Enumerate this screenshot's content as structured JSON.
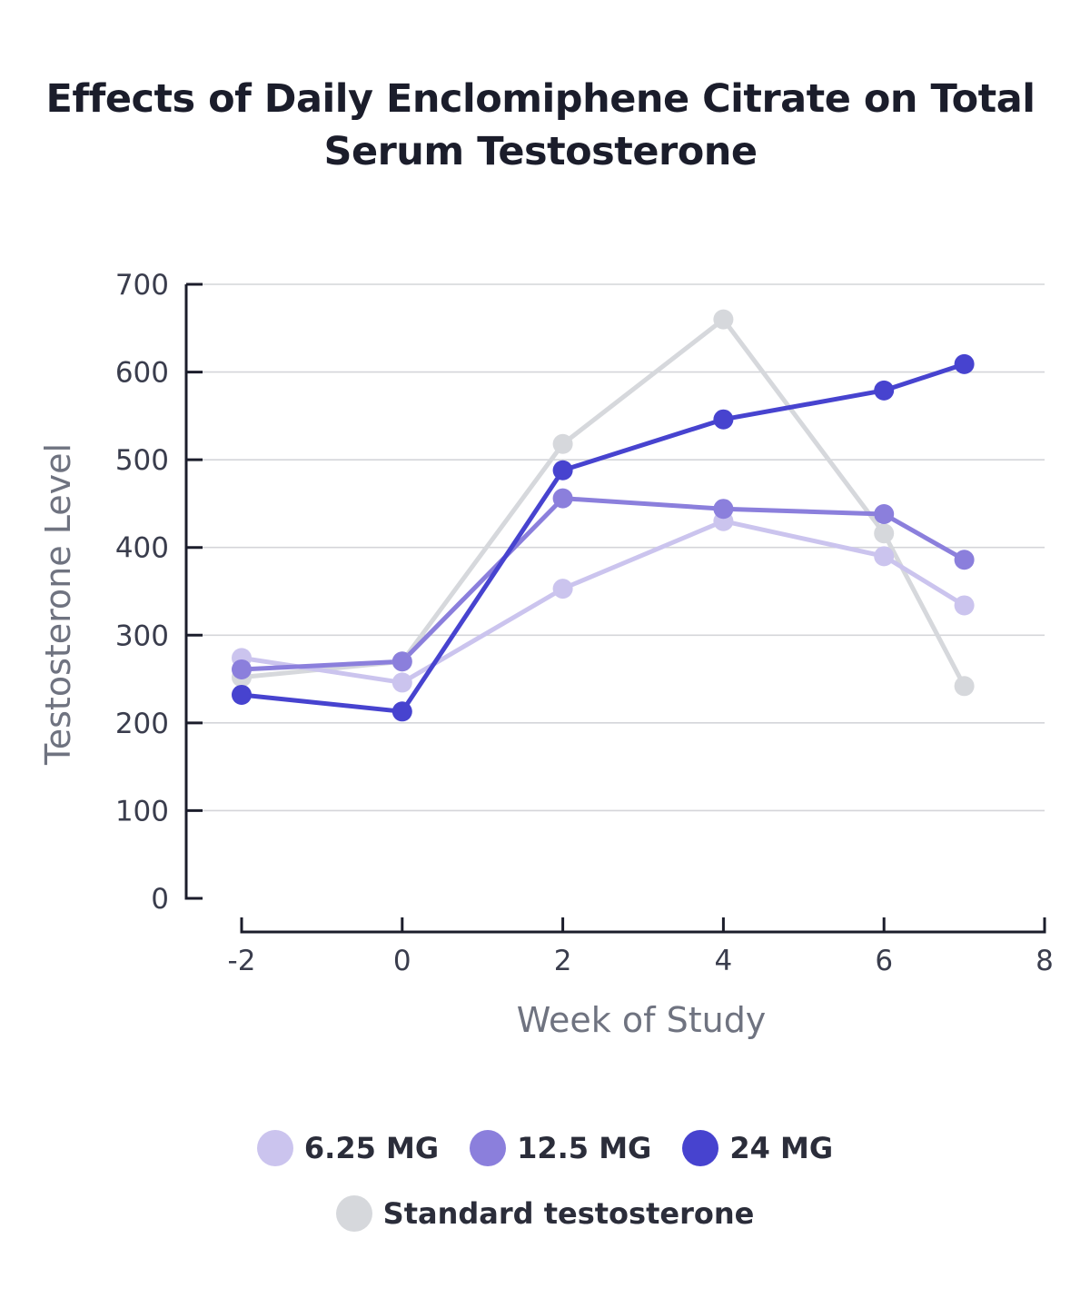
{
  "chart_data": {
    "type": "line",
    "title_line1": "Effects of Daily Enclomiphene Citrate on Total",
    "title_line2": "Serum Testosterone",
    "xlabel": "Week of Study",
    "ylabel": "Testosterone Level",
    "xlim": [
      -2,
      8
    ],
    "ylim": [
      0,
      700
    ],
    "x_ticks": [
      "-2",
      "0",
      "2",
      "4",
      "6",
      "8"
    ],
    "y_ticks": [
      "0",
      "100",
      "200",
      "300",
      "400",
      "500",
      "600",
      "700"
    ],
    "grid": "horizontal",
    "legend_position": "bottom",
    "x": [
      -2,
      0,
      2,
      4,
      6,
      7
    ],
    "series": [
      {
        "name": "Standard testosterone",
        "color": "#d6d8dc",
        "values": [
          252,
          270,
          518,
          660,
          416,
          242
        ]
      },
      {
        "name": "6.25 MG",
        "color": "#cbc4ee",
        "values": [
          274,
          246,
          353,
          430,
          390,
          334
        ]
      },
      {
        "name": "12.5 MG",
        "color": "#8b7fdc",
        "values": [
          261,
          270,
          456,
          444,
          438,
          386
        ]
      },
      {
        "name": "24 MG",
        "color": "#4743cf",
        "values": [
          232,
          213,
          488,
          546,
          579,
          609
        ]
      }
    ],
    "legend_rows": [
      [
        1,
        2,
        3
      ],
      [
        0
      ]
    ]
  }
}
